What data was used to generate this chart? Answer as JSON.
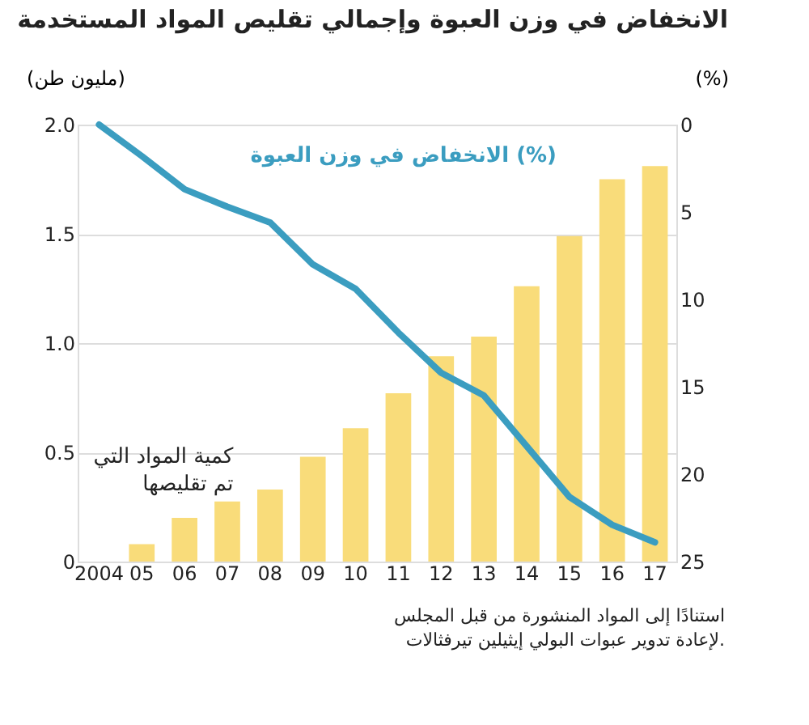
{
  "chart_data": {
    "type": "bar",
    "title": "الانخفاض في وزن العبوة وإجمالي تقليص المواد المستخدمة",
    "ylabel": "(مليون طن)",
    "y2label": "(%)",
    "categories": [
      "2004",
      "05",
      "06",
      "07",
      "08",
      "09",
      "10",
      "11",
      "12",
      "13",
      "14",
      "15",
      "16",
      "17"
    ],
    "series": [
      {
        "name": "كمية المواد التي تم تقليصها",
        "color": "#f9dc7a",
        "values": [
          null,
          0.08,
          0.2,
          0.275,
          0.33,
          0.48,
          0.61,
          0.77,
          0.94,
          1.03,
          1.26,
          1.49,
          1.75,
          1.81
        ]
      },
      {
        "name": "الانخفاض في وزن العبوة (%)",
        "type": "line",
        "axis": "y2",
        "color": "#3b9dc0",
        "values": [
          0,
          1.8,
          3.7,
          4.7,
          5.6,
          8.0,
          9.4,
          11.9,
          14.2,
          15.5,
          18.4,
          21.3,
          22.9,
          23.9
        ]
      }
    ],
    "ylim": [
      0,
      2.0
    ],
    "yticks": [
      0,
      0.5,
      {
        "value": 1,
        "label": "1.0"
      },
      1.5,
      {
        "value": 2,
        "label": "2.0"
      }
    ],
    "y2lim": [
      25,
      0
    ],
    "y2ticks": [
      0,
      5,
      10,
      15,
      20,
      25
    ],
    "grid": "y",
    "marker": "none",
    "line_style": "solid",
    "annotations": [
      "استنادًا إلى المواد المنشورة من قبل المجلس لإعادة تدوير عبوات البولي إيثيلين تيرفثالات."
    ]
  }
}
